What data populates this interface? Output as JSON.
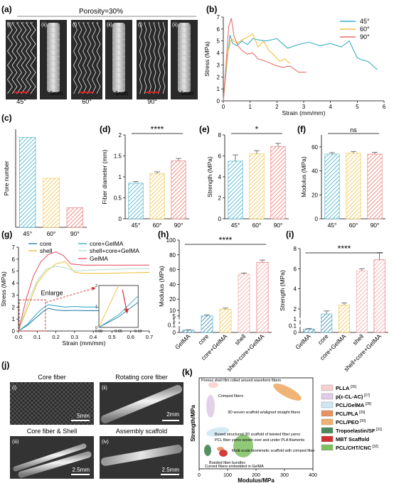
{
  "panel_labels": [
    "(a)",
    "(b)",
    "(c)",
    "(d)",
    "(e)",
    "(f)",
    "(g)",
    "(h)",
    "(i)",
    "(j)",
    "(k)"
  ],
  "colors": {
    "c45": "#3aaec5",
    "c60": "#f0c040",
    "c90": "#e8706a",
    "grey": "#9a9a9a",
    "dark": "#404040"
  },
  "panel_a": {
    "title": "Porosity=30%",
    "sub_labels": [
      "(i)",
      "(ii)"
    ],
    "angles": [
      "45°",
      "60°",
      "90°"
    ],
    "scale": "5mm"
  },
  "panel_j": {
    "captions": [
      "Core fiber",
      "Rotating core fiber",
      "Core fiber & Shell",
      "Assembly scaffold"
    ],
    "sub_labels": [
      "(i)",
      "(ii)",
      "(iii)",
      "(iv)"
    ],
    "scales": [
      "5mm",
      "2mm",
      "2.5mm",
      "2.5mm"
    ]
  },
  "chart_data": [
    {
      "id": "b",
      "type": "line",
      "xlabel": "Strain (mm/mm)",
      "ylabel": "Stress (MPa)",
      "xlim": [
        0,
        6
      ],
      "ylim": [
        0,
        7
      ],
      "xticks": [
        "0",
        "1",
        "2",
        "3",
        "4",
        "5",
        "6"
      ],
      "yticks": [
        "0",
        "1",
        "2",
        "3",
        "4",
        "5",
        "6",
        "7"
      ],
      "legend_position": "top-right",
      "series": [
        {
          "name": "45°",
          "color": "#3aaec5",
          "x": [
            0,
            0.15,
            0.25,
            0.35,
            0.5,
            0.7,
            0.9,
            1.1,
            1.3,
            1.6,
            2.0,
            2.4,
            2.8,
            3.2,
            3.6,
            4.0,
            4.4,
            4.7,
            5.0,
            5.2,
            5.4,
            5.6,
            5.75
          ],
          "y": [
            0,
            3.5,
            5.5,
            4.8,
            4.6,
            5.0,
            4.7,
            5.2,
            5.1,
            5.0,
            5.2,
            4.4,
            4.7,
            4.9,
            4.6,
            4.8,
            4.5,
            5.0,
            3.6,
            3.4,
            3.3,
            2.9,
            2.6
          ]
        },
        {
          "name": "60°",
          "color": "#f0c040",
          "x": [
            0,
            0.15,
            0.3,
            0.5,
            0.7,
            0.9,
            1.1,
            1.3,
            1.5,
            1.7,
            1.9,
            2.1,
            2.3,
            2.5
          ],
          "y": [
            0,
            3.8,
            5.2,
            4.8,
            5.1,
            5.3,
            5.6,
            4.5,
            5.0,
            4.2,
            3.8,
            3.3,
            3.5,
            3.1
          ]
        },
        {
          "name": "90°",
          "color": "#e8706a",
          "x": [
            0,
            0.1,
            0.2,
            0.3,
            0.4,
            0.55,
            0.7,
            0.9,
            1.1,
            1.3,
            1.6,
            1.9,
            2.2,
            2.5,
            2.8,
            3.1
          ],
          "y": [
            0,
            3.0,
            6.2,
            6.9,
            5.4,
            4.6,
            4.2,
            3.9,
            4.0,
            3.5,
            3.3,
            3.0,
            2.8,
            2.9,
            2.4,
            2.4
          ]
        }
      ]
    },
    {
      "id": "c",
      "type": "bar",
      "ylabel": "Pore number",
      "categories": [
        "45°",
        "60°",
        "90°"
      ],
      "values": [
        55,
        30,
        12
      ],
      "ylim": [
        0,
        60
      ],
      "yticks": []
    },
    {
      "id": "d",
      "type": "bar",
      "ylabel": "Fiber diameter (mm)",
      "categories": [
        "45°",
        "60°",
        "90°"
      ],
      "values": [
        0.85,
        1.08,
        1.38
      ],
      "errors": [
        0.04,
        0.04,
        0.06
      ],
      "ylim": [
        0,
        2
      ],
      "yticks": [
        "0",
        "0.5",
        "1",
        "1.5",
        "2"
      ],
      "significance": "****"
    },
    {
      "id": "e",
      "type": "bar",
      "ylabel": "Strength (MPa)",
      "categories": [
        "45°",
        "60°",
        "90°"
      ],
      "values": [
        5.5,
        6.2,
        6.9
      ],
      "errors": [
        0.6,
        0.3,
        0.3
      ],
      "ylim": [
        0,
        8
      ],
      "yticks": [
        "0",
        "2",
        "4",
        "6",
        "8"
      ],
      "significance": "*"
    },
    {
      "id": "f",
      "type": "bar",
      "ylabel": "Modulus (MPa)",
      "categories": [
        "45°",
        "60°",
        "90°"
      ],
      "values": [
        54,
        55,
        54
      ],
      "errors": [
        1.2,
        1.2,
        1.5
      ],
      "ylim": [
        0,
        70
      ],
      "yticks": [
        "0",
        "20",
        "40",
        "60"
      ],
      "significance": "ns"
    },
    {
      "id": "g",
      "type": "line",
      "xlabel": "Strain (mm/mm)",
      "ylabel": "Stress (MPa)",
      "xlim": [
        0,
        0.7
      ],
      "ylim": [
        0,
        7
      ],
      "xticks": [
        "0.0",
        "0.1",
        "0.2",
        "0.3",
        "0.4",
        "0.5",
        "0.6",
        "0.7"
      ],
      "yticks": [
        "0",
        "1",
        "2",
        "3",
        "4",
        "5",
        "6",
        "7"
      ],
      "legend": [
        "core",
        "core+GelMA",
        "shell",
        "shell+core+GelMA",
        "GelMA"
      ],
      "annotation": "Enlarge",
      "inset": {
        "xticks": [
          "0.00",
          "0.05",
          "0.10"
        ],
        "yticks": [
          "0",
          "1",
          "2"
        ]
      },
      "series": [
        {
          "name": "core",
          "color": "#2a7fa8",
          "x": [
            0,
            0.05,
            0.1,
            0.13,
            0.16,
            0.2,
            0.25,
            0.3,
            0.35,
            0.4,
            0.45
          ],
          "y": [
            0,
            0.5,
            1.2,
            1.6,
            1.9,
            1.75,
            1.7,
            1.72,
            1.7,
            1.7,
            1.7
          ]
        },
        {
          "name": "core+GelMA",
          "color": "#3aaec5",
          "x": [
            0,
            0.05,
            0.1,
            0.13,
            0.16,
            0.2,
            0.25,
            0.3,
            0.35,
            0.4,
            0.45
          ],
          "y": [
            0,
            0.6,
            1.5,
            1.9,
            2.2,
            2.1,
            2.0,
            2.05,
            2.0,
            2.0,
            2.0
          ]
        },
        {
          "name": "shell",
          "color": "#f0c040",
          "x": [
            0,
            0.05,
            0.1,
            0.15,
            0.2,
            0.25,
            0.3,
            0.35,
            0.45,
            0.55,
            0.7
          ],
          "y": [
            0,
            2.0,
            4.0,
            5.0,
            5.6,
            5.8,
            4.9,
            4.8,
            4.8,
            4.85,
            4.9
          ]
        },
        {
          "name": "shell+core+GelMA",
          "color": "#b8e0c8",
          "x": [
            0,
            0.05,
            0.1,
            0.15,
            0.2,
            0.25,
            0.3,
            0.4,
            0.5,
            0.6,
            0.7
          ],
          "y": [
            0,
            2.4,
            4.2,
            5.2,
            5.4,
            5.3,
            5.0,
            5.1,
            5.15,
            5.2,
            5.2
          ]
        },
        {
          "name": "GelMA",
          "color": "#e85a6a",
          "x": [
            0,
            0.04,
            0.08,
            0.12,
            0.16,
            0.2,
            0.24,
            0.28,
            0.35,
            0.45,
            0.55,
            0.7
          ],
          "y": [
            0,
            2.6,
            4.6,
            5.8,
            6.4,
            6.6,
            6.3,
            5.6,
            5.5,
            5.5,
            5.5,
            5.5
          ]
        }
      ]
    },
    {
      "id": "h",
      "type": "bar",
      "ylabel": "Modulus (MPa)",
      "categories": [
        "GelMA",
        "core",
        "core+GelMA",
        "shell",
        "shell+core+GelMA"
      ],
      "values": [
        0.03,
        5,
        11,
        54,
        70
      ],
      "errors": [
        0.005,
        1,
        1,
        1.5,
        3
      ],
      "yticks": [
        "0",
        "0.1",
        "1",
        "5",
        "10",
        "20",
        "40",
        "60",
        "80",
        "100"
      ],
      "significance": "****"
    },
    {
      "id": "i",
      "type": "bar",
      "ylabel": "Strength (MPa)",
      "categories": [
        "GelMA",
        "core",
        "core+GelMA",
        "shell",
        "shell+core+GelMA"
      ],
      "values": [
        0.05,
        1.5,
        2.4,
        5.8,
        6.9
      ],
      "errors": [
        0.01,
        0.3,
        0.2,
        0.2,
        0.7
      ],
      "yticks": [
        "0",
        "0.1",
        "1",
        "2",
        "4",
        "6",
        "8"
      ],
      "significance": "****"
    },
    {
      "id": "k",
      "type": "scatter",
      "xlabel": "Modulus/MPa",
      "ylabel": "Strength/MPa",
      "xlim": [
        0,
        400
      ],
      "xticks": [
        "0",
        "100",
        "200",
        "300",
        "400"
      ],
      "annotations": [
        "Porous shell film rolled around waveform fibers",
        "Crimped fibers",
        "3D woven scaffold w/aligned straight fibers",
        "Boxed structured 3D scaffold of twisted fiber yarns",
        "PCL fiber yarns woven over and under PLA filaments",
        "Multi-scale biomimetic scaffold with crimped fiber",
        "Braided fiber bundles",
        "Curved fibers embedded in GelMA"
      ],
      "legend": [
        {
          "name": "PLLA",
          "ref": "[26]",
          "color": "#f8d0d0"
        },
        {
          "name": "p(ε-CL-AC)",
          "ref": "[27]",
          "color": "#e0cce8"
        },
        {
          "name": "PCL/GelMA",
          "ref": "[28]",
          "color": "#cfe8f4"
        },
        {
          "name": "PCL/PLA",
          "ref": "[29]",
          "color": "#e89060"
        },
        {
          "name": "PCL/PEO",
          "ref": "[30]",
          "color": "#f0b070"
        },
        {
          "name": "Tropoelastin/SF",
          "ref": "[31]",
          "color": "#4a8a58"
        },
        {
          "name": "MBT Scaffold",
          "ref": "",
          "color": "#d23030"
        },
        {
          "name": "PCL/CHT/CNC",
          "ref": "[32]",
          "color": "#7ec060"
        }
      ]
    }
  ]
}
